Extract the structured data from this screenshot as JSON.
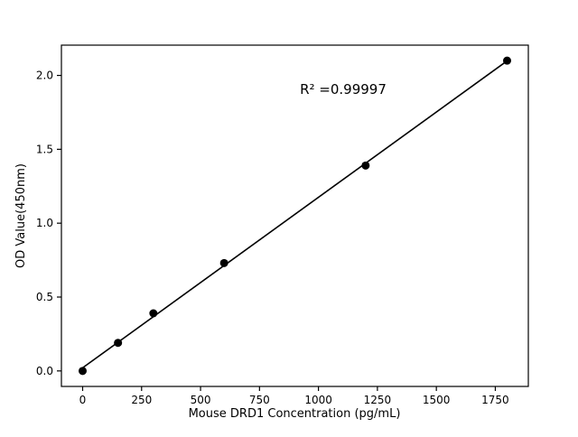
{
  "chart_data": {
    "type": "scatter",
    "title": "",
    "xlabel": "Mouse DRD1 Concentration (pg/mL)",
    "ylabel": "OD Value(450nm)",
    "annotation": "R² =0.99997",
    "x": [
      0,
      150,
      300,
      600,
      1200,
      1800
    ],
    "y": [
      0.0,
      0.19,
      0.39,
      0.73,
      1.39,
      2.1
    ],
    "xlim": [
      -90,
      1890
    ],
    "ylim": [
      -0.105,
      2.205
    ],
    "xticks": [
      0,
      250,
      500,
      750,
      1000,
      1250,
      1500,
      1750
    ],
    "xtick_labels": [
      "0",
      "250",
      "500",
      "750",
      "1000",
      "1250",
      "1500",
      "1750"
    ],
    "ytick_labels": [
      "0.0",
      "0.5",
      "1.0",
      "1.5",
      "2.0"
    ],
    "yticks": [
      0.0,
      0.5,
      1.0,
      1.5,
      2.0
    ],
    "has_line": true,
    "marker_color": "#000000",
    "line_color": "#000000",
    "legend": null,
    "grid": false
  }
}
